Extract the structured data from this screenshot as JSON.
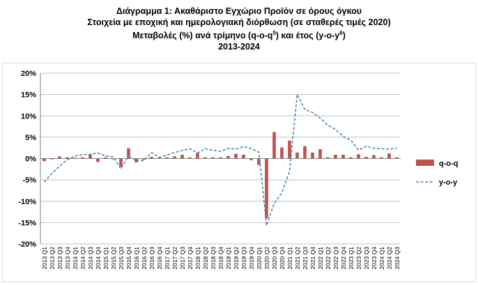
{
  "chart_data": {
    "type": "bar+line",
    "title_lines": [
      "Διάγραμμα 1: Ακαθάριστο Εγχώριο Προϊόν σε όρους όγκου",
      "Στοιχεία με εποχική και ημερολογιακή διόρθωση (σε σταθερές τιμές 2020)"
    ],
    "title_line3": {
      "a": "Μεταβολές (%) ανά τρίμηνο (q-o-q",
      "sup1": "5",
      "b": ") και έτος (y-o-y",
      "sup2": "6",
      "c": ")"
    },
    "title_line4": "2013-2024",
    "categories": [
      "2013 Q1",
      "2013 Q2",
      "2013 Q3",
      "2013 Q4",
      "2014 Q1",
      "2014 Q2",
      "2014 Q3",
      "2014 Q4",
      "2015 Q1",
      "2015 Q2",
      "2015 Q3",
      "2015 Q4",
      "2016 Q1",
      "2016 Q2",
      "2016 Q3",
      "2016 Q4",
      "2017 Q1",
      "2017 Q2",
      "2017 Q3",
      "2017 Q4",
      "2018 Q1",
      "2018 Q2",
      "2018 Q3",
      "2018 Q4",
      "2019 Q1",
      "2019 Q2",
      "2019 Q3",
      "2019 Q4",
      "2020 Q1",
      "2020 Q2",
      "2020 Q3",
      "2020 Q4",
      "2021 Q1",
      "2021 Q2",
      "2021 Q3",
      "2021 Q4",
      "2022 Q1",
      "2022 Q2",
      "2022 Q3",
      "2022 Q4",
      "2023 Q1",
      "2023 Q2",
      "2023 Q3",
      "2023 Q4",
      "2024 Q1",
      "2024 Q2",
      "2024 Q3"
    ],
    "series": [
      {
        "name": "q-o-q",
        "kind": "bar",
        "color": "#C0504D",
        "values": [
          -0.6,
          -0.2,
          0.5,
          0.3,
          0.2,
          0.3,
          0.9,
          -0.8,
          0.3,
          -0.2,
          -1.9,
          2.4,
          -0.9,
          -0.3,
          0.4,
          0.2,
          0.3,
          0.5,
          0.9,
          0.3,
          1.3,
          0.3,
          0.3,
          0.3,
          0.6,
          1.1,
          0.9,
          -0.4,
          -1.5,
          -14.0,
          6.2,
          2.6,
          4.2,
          1.4,
          2.9,
          1.4,
          2.2,
          0.3,
          0.9,
          0.9,
          0.3,
          1.0,
          0.4,
          0.8,
          0.3,
          1.2,
          0.3
        ]
      },
      {
        "name": "y-o-y",
        "kind": "line",
        "color": "#4F81BD",
        "values": [
          -5.5,
          -3.5,
          -1.8,
          -0.3,
          0.6,
          0.9,
          1.0,
          1.3,
          0.6,
          0.4,
          -2.4,
          0.6,
          -0.4,
          -0.5,
          1.4,
          0.3,
          0.8,
          1.4,
          1.9,
          2.3,
          1.3,
          2.3,
          1.9,
          1.7,
          2.4,
          2.2,
          2.8,
          2.3,
          1.5,
          -15.7,
          -10.5,
          -8.0,
          -3.0,
          15.0,
          11.5,
          10.8,
          9.5,
          7.8,
          6.8,
          5.2,
          4.3,
          2.0,
          2.9,
          2.4,
          2.3,
          2.2,
          2.4
        ]
      }
    ],
    "y_ticks": [
      "20%",
      "15%",
      "10%",
      "5%",
      "0%",
      "-5%",
      "-10%",
      "-15%",
      "-20%"
    ],
    "ylim": [
      -20,
      20
    ],
    "grid": "horizontal",
    "legend_position": "right"
  }
}
